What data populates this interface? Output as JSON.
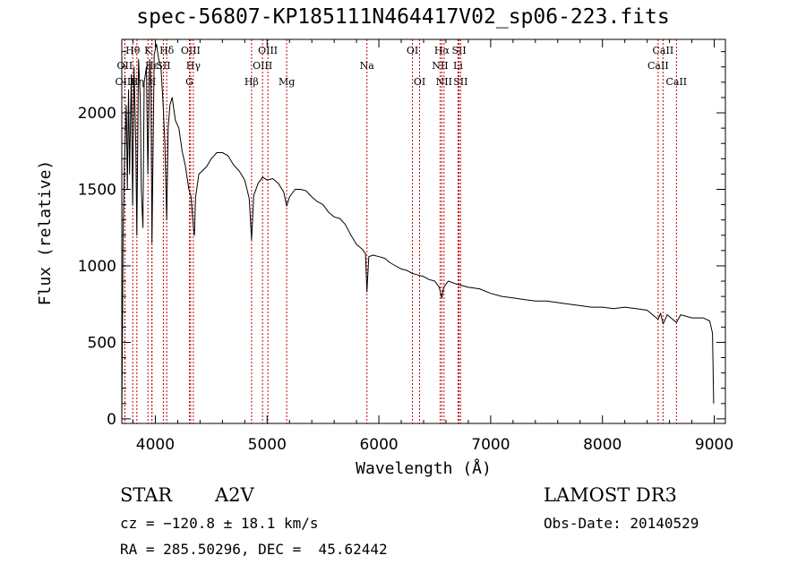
{
  "header": {
    "title": "spec-56807-KP185111N464417V02_sp06-223.fits"
  },
  "info": {
    "object_class": "STAR",
    "subclass": "A2V",
    "survey": "LAMOST DR3",
    "cz": "cz = −120.8 ± 18.1 km/s",
    "obs_date": "Obs-Date: 20140529",
    "coords": "RA = 285.50296, DEC =  45.62442"
  },
  "chart_data": {
    "type": "line",
    "title": "spec-56807-KP185111N464417V02_sp06-223.fits",
    "xlabel": "Wavelength (Å)",
    "ylabel": "Flux (relative)",
    "xlim": [
      3700,
      9100
    ],
    "ylim": [
      -30,
      2480
    ],
    "xticks": [
      4000,
      5000,
      6000,
      7000,
      8000,
      9000
    ],
    "yticks": [
      0,
      500,
      1000,
      1500,
      2000
    ],
    "series": [
      {
        "name": "spectrum",
        "points": [
          [
            3700,
            0
          ],
          [
            3705,
            450
          ],
          [
            3712,
            1250
          ],
          [
            3725,
            1700
          ],
          [
            3740,
            2050
          ],
          [
            3750,
            1500
          ],
          [
            3760,
            2150
          ],
          [
            3770,
            1600
          ],
          [
            3785,
            2250
          ],
          [
            3797,
            1400
          ],
          [
            3810,
            2300
          ],
          [
            3825,
            1800
          ],
          [
            3835,
            1200
          ],
          [
            3850,
            2350
          ],
          [
            3865,
            2100
          ],
          [
            3875,
            1500
          ],
          [
            3889,
            1250
          ],
          [
            3900,
            2200
          ],
          [
            3920,
            2300
          ],
          [
            3933,
            1600
          ],
          [
            3950,
            2350
          ],
          [
            3960,
            2200
          ],
          [
            3970,
            1150
          ],
          [
            3990,
            2380
          ],
          [
            4010,
            2450
          ],
          [
            4030,
            2350
          ],
          [
            4050,
            2300
          ],
          [
            4070,
            2050
          ],
          [
            4085,
            1800
          ],
          [
            4101,
            1300
          ],
          [
            4115,
            1900
          ],
          [
            4130,
            2050
          ],
          [
            4150,
            2100
          ],
          [
            4180,
            1950
          ],
          [
            4210,
            1900
          ],
          [
            4240,
            1750
          ],
          [
            4270,
            1650
          ],
          [
            4300,
            1500
          ],
          [
            4320,
            1450
          ],
          [
            4340,
            1250
          ],
          [
            4350,
            1200
          ],
          [
            4360,
            1450
          ],
          [
            4390,
            1600
          ],
          [
            4420,
            1620
          ],
          [
            4460,
            1650
          ],
          [
            4500,
            1700
          ],
          [
            4550,
            1740
          ],
          [
            4600,
            1740
          ],
          [
            4650,
            1720
          ],
          [
            4700,
            1660
          ],
          [
            4750,
            1620
          ],
          [
            4800,
            1560
          ],
          [
            4840,
            1440
          ],
          [
            4861,
            1170
          ],
          [
            4880,
            1460
          ],
          [
            4920,
            1540
          ],
          [
            4960,
            1580
          ],
          [
            5000,
            1560
          ],
          [
            5050,
            1570
          ],
          [
            5100,
            1540
          ],
          [
            5150,
            1480
          ],
          [
            5175,
            1390
          ],
          [
            5200,
            1450
          ],
          [
            5250,
            1500
          ],
          [
            5300,
            1500
          ],
          [
            5350,
            1490
          ],
          [
            5400,
            1450
          ],
          [
            5450,
            1420
          ],
          [
            5500,
            1400
          ],
          [
            5550,
            1350
          ],
          [
            5600,
            1320
          ],
          [
            5650,
            1310
          ],
          [
            5700,
            1270
          ],
          [
            5750,
            1200
          ],
          [
            5800,
            1140
          ],
          [
            5850,
            1110
          ],
          [
            5880,
            1080
          ],
          [
            5893,
            830
          ],
          [
            5910,
            1060
          ],
          [
            5950,
            1070
          ],
          [
            6000,
            1060
          ],
          [
            6050,
            1050
          ],
          [
            6100,
            1020
          ],
          [
            6150,
            1000
          ],
          [
            6200,
            980
          ],
          [
            6250,
            970
          ],
          [
            6300,
            950
          ],
          [
            6350,
            940
          ],
          [
            6400,
            930
          ],
          [
            6450,
            910
          ],
          [
            6500,
            900
          ],
          [
            6540,
            860
          ],
          [
            6563,
            790
          ],
          [
            6580,
            860
          ],
          [
            6620,
            900
          ],
          [
            6700,
            880
          ],
          [
            6800,
            860
          ],
          [
            6900,
            850
          ],
          [
            7000,
            820
          ],
          [
            7100,
            800
          ],
          [
            7200,
            790
          ],
          [
            7300,
            780
          ],
          [
            7400,
            770
          ],
          [
            7500,
            770
          ],
          [
            7600,
            760
          ],
          [
            7700,
            750
          ],
          [
            7800,
            740
          ],
          [
            7900,
            730
          ],
          [
            8000,
            730
          ],
          [
            8100,
            720
          ],
          [
            8200,
            730
          ],
          [
            8300,
            720
          ],
          [
            8400,
            710
          ],
          [
            8498,
            650
          ],
          [
            8520,
            690
          ],
          [
            8542,
            620
          ],
          [
            8580,
            680
          ],
          [
            8662,
            630
          ],
          [
            8700,
            680
          ],
          [
            8800,
            660
          ],
          [
            8900,
            660
          ],
          [
            8960,
            640
          ],
          [
            8985,
            560
          ],
          [
            8995,
            100
          ]
        ]
      }
    ],
    "lines": [
      {
        "label": "Hθ",
        "wave": 3798,
        "row": 0
      },
      {
        "label": "K",
        "wave": 3934,
        "row": 0
      },
      {
        "label": "Hδ",
        "wave": 4102,
        "row": 0
      },
      {
        "label": "OIII",
        "wave": 4316,
        "row": 0
      },
      {
        "label": "OIII",
        "wave": 5007,
        "row": 0
      },
      {
        "label": "OI",
        "wave": 6300,
        "row": 0
      },
      {
        "label": "Hα",
        "wave": 6563,
        "row": 0
      },
      {
        "label": "SII",
        "wave": 6717,
        "row": 0
      },
      {
        "label": "CaII",
        "wave": 8542,
        "row": 0
      },
      {
        "label": "OII",
        "wave": 3727,
        "row": 1
      },
      {
        "label": "Hε",
        "wave": 3970,
        "row": 1
      },
      {
        "label": "SII",
        "wave": 4072,
        "row": 1
      },
      {
        "label": "Hγ",
        "wave": 4340,
        "row": 1
      },
      {
        "label": "OIII",
        "wave": 4959,
        "row": 1
      },
      {
        "label": "Na",
        "wave": 5893,
        "row": 1
      },
      {
        "label": "NII",
        "wave": 6548,
        "row": 1
      },
      {
        "label": "Li",
        "wave": 6708,
        "row": 1
      },
      {
        "label": "CaII",
        "wave": 8498,
        "row": 1
      },
      {
        "label": "OIII",
        "wave": 3728,
        "row": 2
      },
      {
        "label": "Hη",
        "wave": 3835,
        "row": 2
      },
      {
        "label": "H",
        "wave": 3969,
        "row": 2
      },
      {
        "label": "G",
        "wave": 4305,
        "row": 2
      },
      {
        "label": "Hβ",
        "wave": 4861,
        "row": 2
      },
      {
        "label": "Mg",
        "wave": 5175,
        "row": 2
      },
      {
        "label": "OI",
        "wave": 6364,
        "row": 2
      },
      {
        "label": "NII",
        "wave": 6583,
        "row": 2
      },
      {
        "label": "SII",
        "wave": 6731,
        "row": 2
      },
      {
        "label": "CaII",
        "wave": 8662,
        "row": 2
      }
    ]
  }
}
